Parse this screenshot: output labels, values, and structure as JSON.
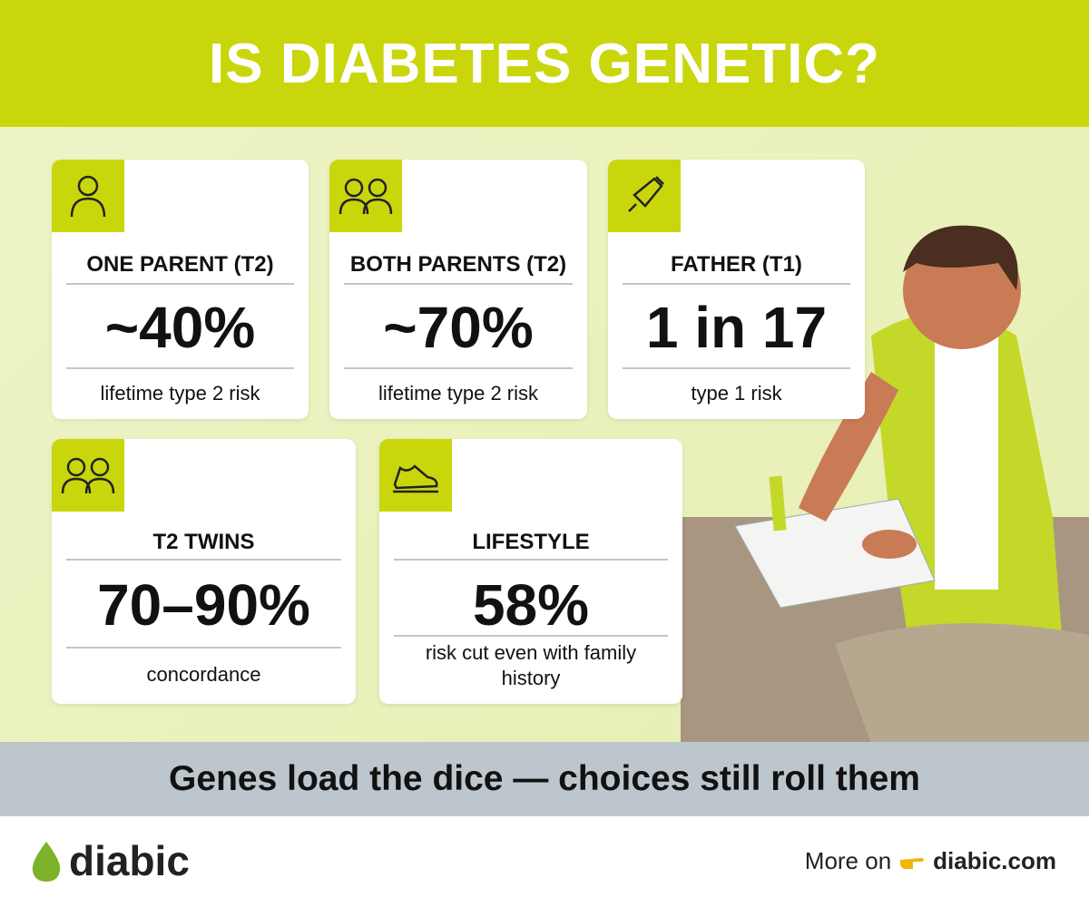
{
  "header": {
    "title": "IS DIABETES GENETIC?"
  },
  "cards": [
    {
      "label": "ONE PARENT (T2)",
      "value": "~40%",
      "description": "lifetime type 2 risk"
    },
    {
      "label": "BOTH PARENTS (T2)",
      "value": "~70%",
      "description": "lifetime type 2 risk"
    },
    {
      "label": "FATHER (T1)",
      "value": "1 in 17",
      "description": "type 1 risk"
    },
    {
      "label": "T2 TWINS",
      "value": "70–90%",
      "description": "concordance"
    },
    {
      "label": "LIFESTYLE",
      "value": "58%",
      "description": "risk cut even with family history"
    }
  ],
  "tagline": "Genes load the dice — choices still roll them",
  "footer": {
    "brand": "diabic",
    "more_on": "More on",
    "link": "diabic.com"
  }
}
